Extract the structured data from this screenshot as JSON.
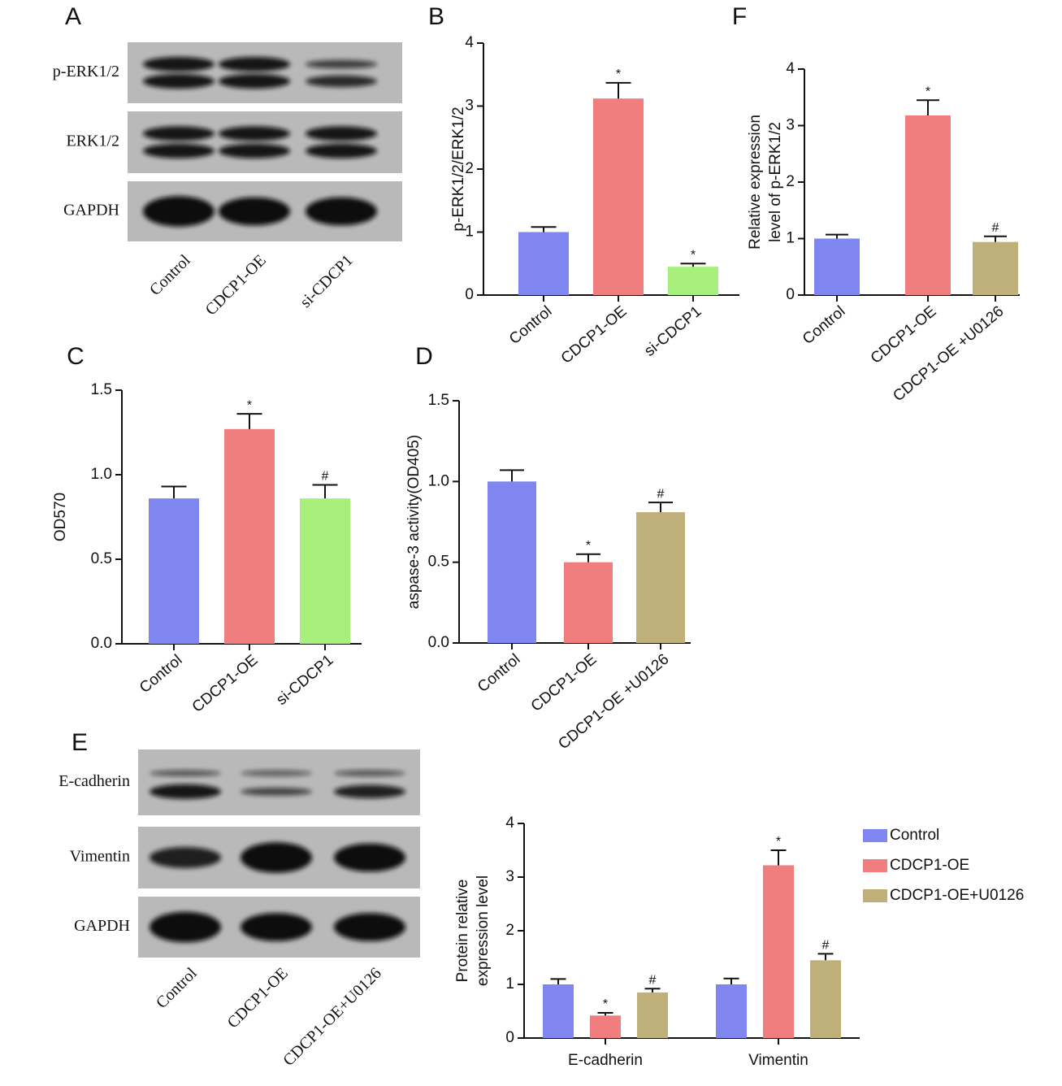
{
  "blots": [
    {
      "panel_label": "A",
      "rows": [
        "p-ERK1/2",
        "ERK1/2",
        "GAPDH"
      ],
      "lanes": [
        "Control",
        "CDCP1-OE",
        "si-CDCP1"
      ]
    },
    {
      "panel_label": "E",
      "rows": [
        "E-cadherin",
        "Vimentin",
        "GAPDH"
      ],
      "lanes": [
        "Control",
        "CDCP1-OE",
        "CDCP1-OE+U0126"
      ]
    }
  ],
  "chart_data": [
    {
      "type": "bar",
      "panel_label": "B",
      "y_label": [
        "p-ERK1/2/ERK1/2"
      ],
      "categories": [
        "Control",
        "CDCP1-OE",
        "si-CDCP1"
      ],
      "values": [
        1.0,
        3.12,
        0.45
      ],
      "errors": [
        0.08,
        0.25,
        0.05
      ],
      "annotations": [
        null,
        "*",
        "*"
      ],
      "colors": [
        "#7f86f0",
        "#f07e7e",
        "#a9ef7c"
      ],
      "ylim": [
        0,
        4
      ],
      "yticks": [
        0,
        1,
        2,
        3,
        4
      ]
    },
    {
      "type": "bar",
      "panel_label": "F",
      "y_label": [
        "Relative expression",
        "level of p-ERK1/2"
      ],
      "categories": [
        "Control",
        "CDCP1-OE",
        "CDCP1-OE +U0126"
      ],
      "values": [
        1.0,
        3.18,
        0.94
      ],
      "errors": [
        0.07,
        0.27,
        0.1
      ],
      "annotations": [
        null,
        "*",
        "#"
      ],
      "colors": [
        "#7f86f0",
        "#f07e7e",
        "#bfb07a"
      ],
      "ylim": [
        0,
        4
      ],
      "yticks": [
        0,
        1,
        2,
        3,
        4
      ]
    },
    {
      "type": "bar",
      "panel_label": "C",
      "y_label": [
        "OD570"
      ],
      "categories": [
        "Control",
        "CDCP1-OE",
        "si-CDCP1"
      ],
      "values": [
        0.86,
        1.27,
        0.86
      ],
      "errors": [
        0.07,
        0.09,
        0.08
      ],
      "annotations": [
        null,
        "*",
        "#"
      ],
      "colors": [
        "#7f86f0",
        "#f07e7e",
        "#a9ef7c"
      ],
      "ylim": [
        0,
        1.5
      ],
      "yticks": [
        {
          "value": 0,
          "label": "0.0"
        },
        0.5,
        {
          "value": 1,
          "label": "1.0"
        },
        1.5
      ]
    },
    {
      "type": "bar",
      "panel_label": "D",
      "y_label": [
        "aspase-3 activity(OD405)"
      ],
      "categories": [
        "Control",
        "CDCP1-OE",
        "CDCP1-OE +U0126"
      ],
      "values": [
        1.0,
        0.5,
        0.81
      ],
      "errors": [
        0.07,
        0.05,
        0.06
      ],
      "annotations": [
        null,
        "*",
        "#"
      ],
      "colors": [
        "#7f86f0",
        "#f07e7e",
        "#bfb07a"
      ],
      "ylim": [
        0,
        1.5
      ],
      "yticks": [
        {
          "value": 0,
          "label": "0.0"
        },
        0.5,
        {
          "value": 1,
          "label": "1.0"
        },
        1.5
      ]
    },
    {
      "type": "grouped-bar",
      "y_label": [
        "Protein relative",
        "expression level"
      ],
      "categories": [
        "E-cadherin",
        "Vimentin"
      ],
      "series": [
        {
          "name": "Control",
          "color": "#7f86f0",
          "values": [
            1.0,
            1.0
          ],
          "errors": [
            0.1,
            0.11
          ],
          "annotations": [
            null,
            null
          ]
        },
        {
          "name": "CDCP1-OE",
          "color": "#f07e7e",
          "values": [
            0.42,
            3.22
          ],
          "errors": [
            0.05,
            0.28
          ],
          "annotations": [
            "*",
            "*"
          ]
        },
        {
          "name": "CDCP1-OE+U0126",
          "color": "#bfb07a",
          "values": [
            0.85,
            1.45
          ],
          "errors": [
            0.07,
            0.12
          ],
          "annotations": [
            "#",
            "#"
          ]
        }
      ],
      "ylim": [
        0,
        4
      ],
      "yticks": [
        0,
        1,
        2,
        3,
        4
      ]
    }
  ]
}
